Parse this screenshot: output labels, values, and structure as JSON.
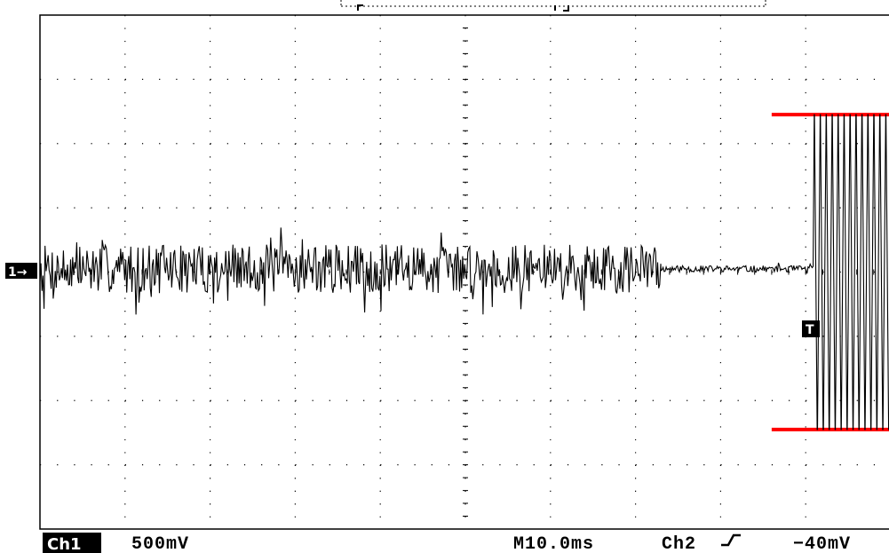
{
  "chart_data": {
    "type": "line",
    "title": "",
    "channel_label": "Ch1",
    "volts_per_div": "500mV",
    "timebase": "M10.0ms",
    "trigger_source": "Ch2",
    "trigger_slope_icon": "rising-edge-icon",
    "trigger_level": "−40mV",
    "channel_marker": "1→",
    "trigger_marker": "T",
    "grid": true,
    "grid_divisions": {
      "x": 10,
      "y": 8
    },
    "xlim": [
      0,
      10
    ],
    "ylim": [
      -4,
      4
    ],
    "series": [
      {
        "segments": [
          {
            "x_start": 0.0,
            "x_end": 7.3,
            "amplitude_div": 0.38,
            "seed": 7
          },
          {
            "x_start": 7.3,
            "x_end": 9.1,
            "amplitude_div": 0.05,
            "seed": 11
          },
          {
            "x_start": 9.1,
            "x_end": 10.0,
            "amplitude_div": 2.45,
            "period_div": 0.07
          }
        ]
      }
    ],
    "reference_lines": [
      {
        "y": 2.45,
        "x_start": 8.6,
        "x_end": 10.0,
        "color": "#ff0000"
      },
      {
        "y": -2.45,
        "x_start": 8.6,
        "x_end": 10.0,
        "color": "#ff0000"
      }
    ]
  }
}
